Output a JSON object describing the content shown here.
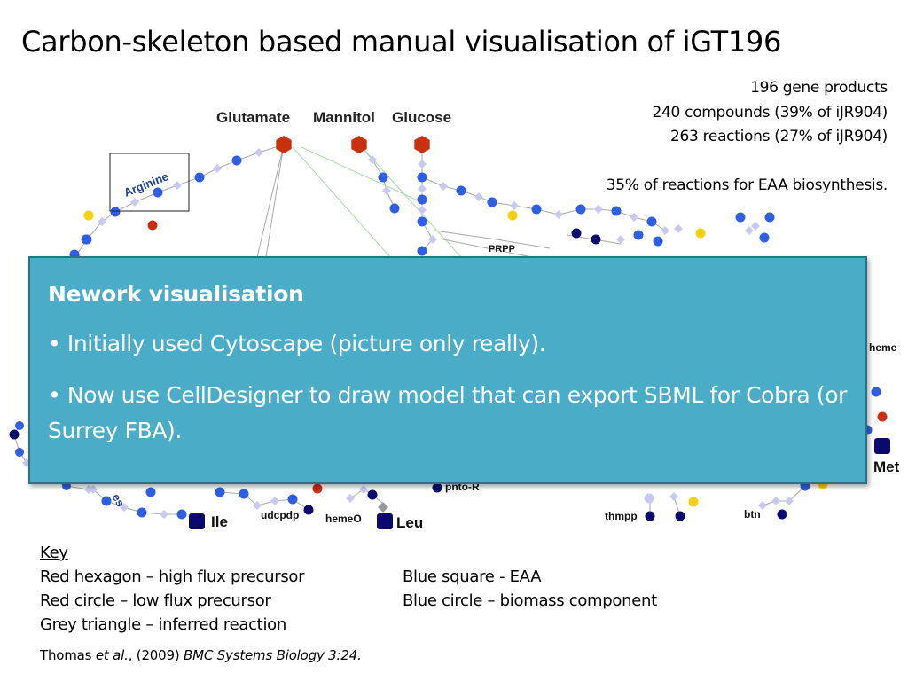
{
  "title": "Carbon-skeleton based manual visualisation of iGT196",
  "stats": {
    "line1": "196 gene products",
    "line2": "240 compounds (39% of iJR904)",
    "line3": "263 reactions (27% of iJR904)",
    "line4": "35% of reactions for EAA biosynthesis."
  },
  "network": {
    "labels": {
      "glutamate": "Glutamate",
      "mannitol": "Mannitol",
      "glucose": "Glucose",
      "arginine": "Arginine",
      "prpp": "PRPP",
      "heme": "heme",
      "met": "Met",
      "ile": "Ile",
      "leu": "Leu",
      "udcpdp": "udcpdp",
      "hemeo": "hemeO",
      "pnto_r": "pnto-R",
      "thmpp": "thmpp",
      "btn": "btn",
      "es": "es"
    },
    "colors": {
      "high_flux_precursor": "#c8310f",
      "low_flux_precursor": "#c8310f",
      "eaa": "#0a0a6e",
      "biomass": "#2f5fe0",
      "cofactor": "#f5d010",
      "reaction": "#c8c8f0",
      "edge": "#a8a8a8",
      "edge_green": "#a6dca6"
    }
  },
  "overlay": {
    "title": "Nework visualisation",
    "item1": "• Initially used Cytoscape (picture only really).",
    "item2": "• Now use CellDesigner to draw model that can export SBML for Cobra (or Surrey FBA)."
  },
  "key": {
    "heading": "Key",
    "entries": [
      "Red hexagon – high flux precursor",
      "Blue square - EAA",
      "Red circle – low flux precursor",
      "Blue circle – biomass component",
      "Grey triangle – inferred reaction"
    ]
  },
  "citation": {
    "authors": "Thomas ",
    "et_al": "et al.",
    "year": ", (2009) ",
    "journal": "BMC Systems Biology 3:24."
  }
}
